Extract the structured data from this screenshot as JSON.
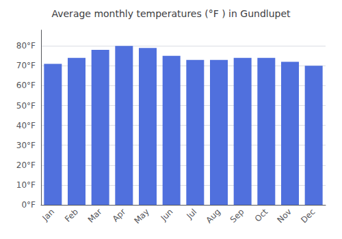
{
  "chart_data": {
    "type": "bar",
    "title": "Average monthly temperatures (°F ) in Gundlupet",
    "categories": [
      "Jan",
      "Feb",
      "Mar",
      "Apr",
      "May",
      "Jun",
      "Jul",
      "Aug",
      "Sep",
      "Oct",
      "Nov",
      "Dec"
    ],
    "values": [
      71,
      74,
      78,
      80,
      79,
      75,
      73,
      73,
      74,
      74,
      72,
      70
    ],
    "ylim": [
      0,
      88
    ],
    "yticks": [
      {
        "value": 0,
        "label": "0°F"
      },
      {
        "value": 10,
        "label": "10°F"
      },
      {
        "value": 20,
        "label": "20°F"
      },
      {
        "value": 30,
        "label": "30°F"
      },
      {
        "value": 40,
        "label": "40°F"
      },
      {
        "value": 50,
        "label": "50°F"
      },
      {
        "value": 60,
        "label": "60°F"
      },
      {
        "value": 70,
        "label": "70°F"
      },
      {
        "value": 80,
        "label": "80°F"
      }
    ],
    "grid": true
  }
}
